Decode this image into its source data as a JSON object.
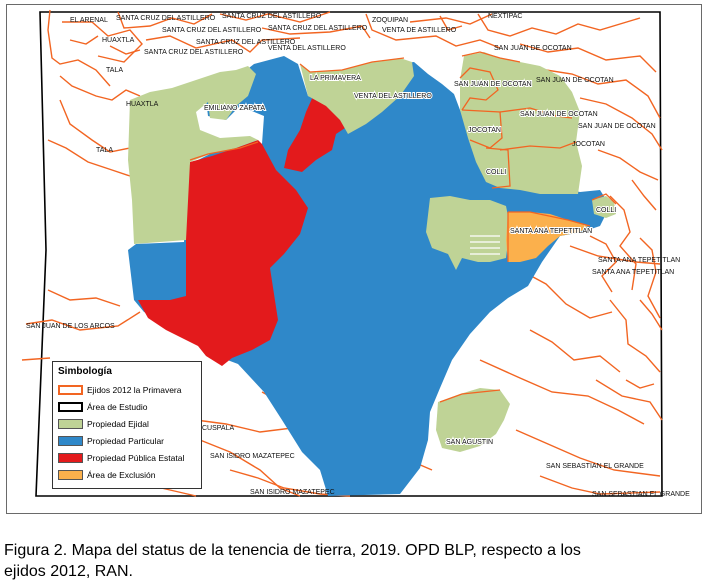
{
  "colors": {
    "ejido_outline": "#f26522",
    "study_area_outline": "#000000",
    "ejidal": "#bfd396",
    "particular": "#2f88c9",
    "publica_estatal": "#e31a1c",
    "exclusion": "#fbb04c"
  },
  "map_labels": {
    "el_arenal": "EL ARENAL",
    "scda_1": "SANTA CRUZ DEL ASTILLERO",
    "scda_2": "SANTA CRUZ DEL ASTILLERO",
    "scda_3": "SANTA CRUZ DEL ASTILLERO",
    "scda_4": "SANTA CRUZ DEL ASTILLERO",
    "scda_5": "SANTA CRUZ DEL ASTILLERO",
    "scda_6": "SANTA CRUZ DEL ASTILLERO",
    "zoquipan": "ZOQUIPAN",
    "nextipac": "NEXTIPAC",
    "vda_1": "VENTA DE ASTILLERO",
    "vda_2": "VENTA DEL ASTILLERO",
    "vda_3": "VENTA DEL ASTILLERO",
    "huaxtla_1": "HUAXTLA",
    "huaxtla_2": "HUAXTLA",
    "tala_1": "TALA",
    "tala_2": "TALA",
    "la_primavera": "LA PRIMAVERA",
    "emiliano_zapata": "EMILIANO ZAPATA",
    "sjo_1": "SAN JUAN DE OCOTAN",
    "sjo_2": "SAN JUAN DE OCOTAN",
    "sjo_3": "SAN JUAN DE OCOTAN",
    "sjo_4": "SAN JUAN DE OCOTAN",
    "sjo_5": "SAN JUAN DE OCOTAN",
    "jocotan_1": "JOCOTAN",
    "jocotan_2": "JOCOTAN",
    "colli_1": "COLLI",
    "colli_2": "COLLI",
    "stt_1": "SANTA ANA TEPETITLAN",
    "stt_2": "SANTA ANA TEPETITLAN",
    "stt_3": "SANTA ANA TEPETITLAN",
    "sjda": "SAN JUAN DE LOS ARCOS",
    "cuspala": "CUSPALA",
    "sim_1": "SAN ISIDRO MAZATEPEC",
    "sim_2": "SAN ISIDRO MAZATEPEC",
    "san_agustin": "SAN AGUSTIN",
    "ssg_1": "SAN SEBASTIAN EL GRANDE",
    "ssg_2": "SAN SEBASTIAN EL GRANDE"
  },
  "legend": {
    "title": "Simbología",
    "items": [
      {
        "label": "Ejidos 2012 la Primavera",
        "type": "outline",
        "color": "#f26522"
      },
      {
        "label": "Área de Estudio",
        "type": "outline",
        "color": "#000000"
      },
      {
        "label": "Propiedad Ejidal",
        "type": "fill",
        "color": "#bfd396"
      },
      {
        "label": "Propiedad Particular",
        "type": "fill",
        "color": "#2f88c9"
      },
      {
        "label": "Propiedad Pública Estatal",
        "type": "fill",
        "color": "#e31a1c"
      },
      {
        "label": "Área de Exclusión",
        "type": "fill",
        "color": "#fbb04c"
      }
    ]
  },
  "caption": {
    "line1": "Figura 2. Mapa del status de la tenencia de tierra, 2019. OPD BLP, respecto a los",
    "line2": "ejidos 2012, RAN."
  }
}
